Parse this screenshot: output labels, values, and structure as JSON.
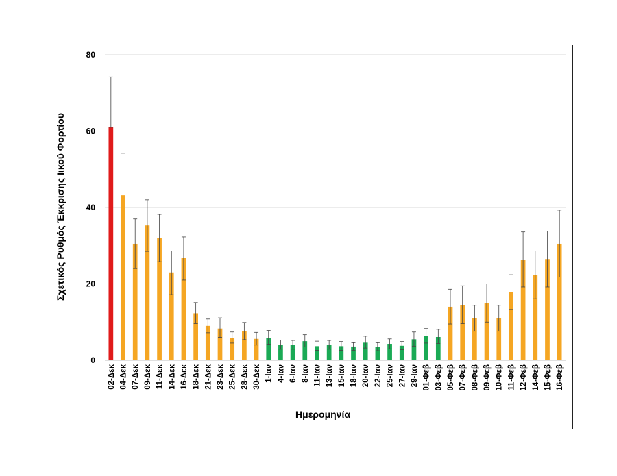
{
  "chart_data": {
    "type": "bar",
    "title": "",
    "xlabel": "Ημερομηνία",
    "ylabel": "Σχετικός Ρυθμός Έκκρισης Ιικού Φορτίου",
    "ylim": [
      0,
      80
    ],
    "yticks": [
      0,
      20,
      40,
      60,
      80
    ],
    "grid": true,
    "legend": "none",
    "colors": {
      "high": "#e01b1b",
      "medium": "#f5a623",
      "low": "#1aaa55"
    },
    "categories": [
      "02-Δεκ",
      "04-Δεκ",
      "07-Δεκ",
      "09-Δεκ",
      "11-Δεκ",
      "14-Δεκ",
      "16-Δεκ",
      "18-Δεκ",
      "21-Δεκ",
      "23-Δεκ",
      "25-Δεκ",
      "28-Δεκ",
      "30-Δεκ",
      "1-Ιαν",
      "4-Ιαν",
      "6-Ιαν",
      "8-Ιαν",
      "11-Ιαν",
      "13-Ιαν",
      "15-Ιαν",
      "18-Ιαν",
      "20-Ιαν",
      "22-Ιαν",
      "25-Ιαν",
      "27-Ιαν",
      "29-Ιαν",
      "01-Φεβ",
      "03-Φεβ",
      "05-Φεβ",
      "07-Φεβ",
      "08-Φεβ",
      "09-Φεβ",
      "10-Φεβ",
      "11-Φεβ",
      "12-Φεβ",
      "14-Φεβ",
      "15-Φεβ",
      "16-Φεβ"
    ],
    "values": [
      61,
      43.2,
      30.5,
      35.3,
      32,
      23,
      26.8,
      12.3,
      9,
      8.3,
      5.9,
      7.7,
      5.6,
      5.9,
      4,
      4,
      5,
      3.7,
      4,
      3.7,
      3.6,
      4.6,
      3.5,
      4.3,
      3.8,
      5.5,
      6.3,
      6.1,
      14,
      14.5,
      11,
      15,
      11,
      17.8,
      26.3,
      22.3,
      26.5,
      30.5
    ],
    "error_upper": [
      74.2,
      54.2,
      37,
      42,
      38.2,
      28.6,
      32.3,
      15.1,
      10.8,
      11.1,
      7.4,
      9.9,
      7.3,
      7.8,
      5.3,
      5.2,
      6.7,
      5,
      5.2,
      4.9,
      4.6,
      6.3,
      4.6,
      5.6,
      4.9,
      7.4,
      8.3,
      8.1,
      18.6,
      19.5,
      14.4,
      20,
      14.4,
      22.4,
      33.6,
      28.6,
      33.8,
      39.3
    ],
    "error_lower": [
      61,
      32,
      24,
      28.5,
      25.8,
      17.2,
      21,
      9.6,
      7.2,
      6,
      4.5,
      5.4,
      4,
      4.2,
      2.9,
      2.9,
      3.5,
      2.6,
      2.9,
      2.6,
      2.6,
      3.2,
      2.5,
      3,
      2.8,
      3.7,
      4.5,
      4.4,
      9.5,
      9.6,
      7.6,
      10,
      7.6,
      13.3,
      19.2,
      16.1,
      19.2,
      21.8
    ],
    "levels": [
      "high",
      "medium",
      "medium",
      "medium",
      "medium",
      "medium",
      "medium",
      "medium",
      "medium",
      "medium",
      "medium",
      "medium",
      "medium",
      "low",
      "low",
      "low",
      "low",
      "low",
      "low",
      "low",
      "low",
      "low",
      "low",
      "low",
      "low",
      "low",
      "low",
      "low",
      "medium",
      "medium",
      "medium",
      "medium",
      "medium",
      "medium",
      "medium",
      "medium",
      "medium",
      "medium"
    ]
  }
}
